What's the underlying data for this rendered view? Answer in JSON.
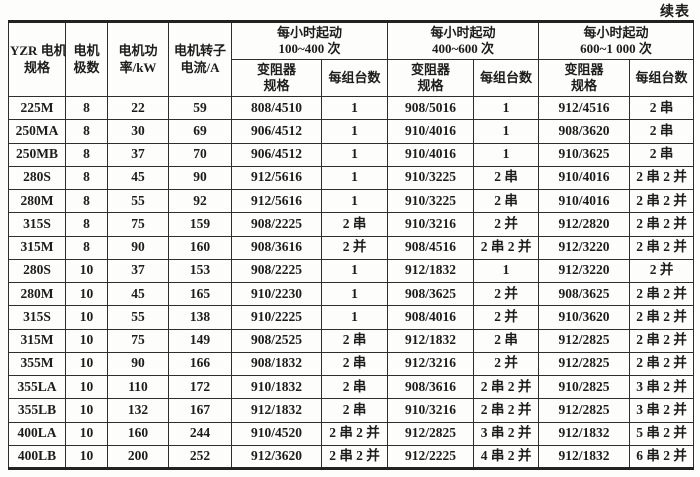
{
  "page": {
    "continued_label": "续表"
  },
  "table": {
    "headers": {
      "col_motor": {
        "line1": "YZR 电机",
        "line2": "规格"
      },
      "col_poles": {
        "line1": "电机",
        "line2": "极数"
      },
      "col_power": {
        "line1": "电机功",
        "line2": "率/kW"
      },
      "col_current": {
        "line1": "电机转子",
        "line2": "电流/A"
      },
      "groups": [
        {
          "line1": "每小时起动",
          "line2": "100~400 次"
        },
        {
          "line1": "每小时起动",
          "line2": "400~600 次"
        },
        {
          "line1": "每小时起动",
          "line2": "600~1 000 次"
        }
      ],
      "sub_rheostat": {
        "line1": "变阻器",
        "line2": "规格"
      },
      "sub_units": "每组台数"
    },
    "rows": [
      [
        "225M",
        "8",
        "22",
        "59",
        "808/4510",
        "1",
        "908/5016",
        "1",
        "912/4516",
        "2 串"
      ],
      [
        "250MA",
        "8",
        "30",
        "69",
        "906/4512",
        "1",
        "910/4016",
        "1",
        "908/3620",
        "2 串"
      ],
      [
        "250MB",
        "8",
        "37",
        "70",
        "906/4512",
        "1",
        "910/4016",
        "1",
        "910/3625",
        "2 串"
      ],
      [
        "280S",
        "8",
        "45",
        "90",
        "912/5616",
        "1",
        "910/3225",
        "2 串",
        "910/4016",
        "2 串 2 并"
      ],
      [
        "280M",
        "8",
        "55",
        "92",
        "912/5616",
        "1",
        "910/3225",
        "2 串",
        "910/4016",
        "2 串 2 并"
      ],
      [
        "315S",
        "8",
        "75",
        "159",
        "908/2225",
        "2 串",
        "910/3216",
        "2 并",
        "912/2820",
        "2 串 2 并"
      ],
      [
        "315M",
        "8",
        "90",
        "160",
        "908/3616",
        "2 并",
        "908/4516",
        "2 串 2 并",
        "912/3220",
        "2 串 2 并"
      ],
      [
        "280S",
        "10",
        "37",
        "153",
        "908/2225",
        "1",
        "912/1832",
        "1",
        "912/3220",
        "2 并"
      ],
      [
        "280M",
        "10",
        "45",
        "165",
        "910/2230",
        "1",
        "908/3625",
        "2 并",
        "908/3625",
        "2 串 2 并"
      ],
      [
        "315S",
        "10",
        "55",
        "138",
        "910/2225",
        "1",
        "908/4016",
        "2 并",
        "910/3620",
        "2 串 2 并"
      ],
      [
        "315M",
        "10",
        "75",
        "149",
        "908/2525",
        "2 串",
        "912/1832",
        "2 串",
        "912/2825",
        "2 串 2 并"
      ],
      [
        "355M",
        "10",
        "90",
        "166",
        "908/1832",
        "2 串",
        "912/3216",
        "2 并",
        "912/2825",
        "2 串 2 并"
      ],
      [
        "355LA",
        "10",
        "110",
        "172",
        "910/1832",
        "2 串",
        "908/3616",
        "2 串 2 并",
        "910/2825",
        "3 串 2 并"
      ],
      [
        "355LB",
        "10",
        "132",
        "167",
        "912/1832",
        "2 串",
        "910/3216",
        "2 串 2 并",
        "912/2825",
        "3 串 2 并"
      ],
      [
        "400LA",
        "10",
        "160",
        "244",
        "910/4520",
        "2 串 2 并",
        "912/2825",
        "3 串 2 并",
        "912/1832",
        "5 串 2 并"
      ],
      [
        "400LB",
        "10",
        "200",
        "252",
        "912/3620",
        "2 串 2 并",
        "912/2225",
        "4 串 2 并",
        "912/1832",
        "6 串 2 并"
      ]
    ]
  }
}
